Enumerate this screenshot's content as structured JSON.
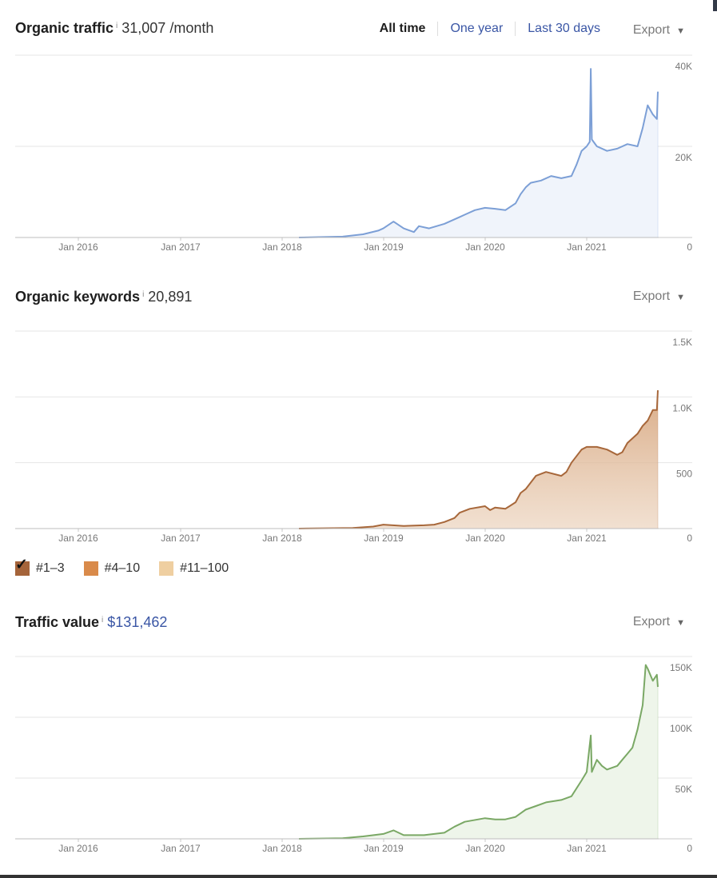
{
  "traffic": {
    "title": "Organic traffic",
    "info": "i",
    "value": "31,007 /month",
    "ranges": [
      "All time",
      "One year",
      "Last 30 days"
    ],
    "export": "Export"
  },
  "keywords": {
    "title": "Organic keywords",
    "info": "i",
    "value": "20,891",
    "export": "Export",
    "legend": [
      "#1–3",
      "#4–10",
      "#11–100"
    ]
  },
  "value_section": {
    "title": "Traffic value",
    "info": "i",
    "value": "$131,462",
    "export": "Export"
  },
  "colors": {
    "traffic_line": "#7c9fd6",
    "traffic_fill": "#f0f4fb",
    "keywords_line": "#a7673a",
    "keywords_fill": "#e6c7ab",
    "keywords_fill_top": "#d9ab86",
    "value_line": "#7aa865",
    "value_fill": "#eef5ea",
    "legend_1": "#a5643a",
    "legend_2": "#d98a4a",
    "legend_3": "#efcfa1"
  },
  "chart_data": [
    {
      "type": "area",
      "title": "Organic traffic",
      "x_ticks": [
        "Jan 2016",
        "Jan 2017",
        "Jan 2018",
        "Jan 2019",
        "Jan 2020",
        "Jan 2021"
      ],
      "y_ticks": [
        "0",
        "20K",
        "40K"
      ],
      "ylim": [
        0,
        40000
      ],
      "xlim": [
        2015.4,
        2021.7
      ],
      "grid": true,
      "series": [
        {
          "x": [
            2018.17,
            2018.6,
            2018.8,
            2018.95,
            2019.0,
            2019.1,
            2019.2,
            2019.3,
            2019.35,
            2019.45,
            2019.6,
            2019.75,
            2019.8,
            2019.9,
            2020.0,
            2020.1,
            2020.2,
            2020.3,
            2020.35,
            2020.4,
            2020.45,
            2020.55,
            2020.65,
            2020.75,
            2020.85,
            2020.9,
            2020.95,
            2021.0,
            2021.03,
            2021.04,
            2021.05,
            2021.1,
            2021.2,
            2021.3,
            2021.4,
            2021.5,
            2021.55,
            2021.6,
            2021.65,
            2021.69,
            2021.7
          ],
          "y": [
            0,
            200,
            700,
            1500,
            2000,
            3500,
            2000,
            1200,
            2500,
            2000,
            3000,
            4500,
            5000,
            6000,
            6500,
            6300,
            6000,
            7500,
            9500,
            11000,
            12000,
            12500,
            13500,
            13000,
            13500,
            16000,
            19000,
            20000,
            21000,
            37000,
            21500,
            20000,
            19000,
            19500,
            20500,
            20000,
            24000,
            29000,
            27000,
            26000,
            32000
          ]
        }
      ]
    },
    {
      "type": "area",
      "title": "Organic keywords",
      "x_ticks": [
        "Jan 2016",
        "Jan 2017",
        "Jan 2018",
        "Jan 2019",
        "Jan 2020",
        "Jan 2021"
      ],
      "y_ticks": [
        "0",
        "500",
        "1.0K",
        "1.5K"
      ],
      "ylim": [
        0,
        1500
      ],
      "xlim": [
        2015.4,
        2021.7
      ],
      "grid": true,
      "legend": [
        "#1–3",
        "#4–10",
        "#11–100"
      ],
      "legend_placement": "bottom-left",
      "series": [
        {
          "name": "#1–3",
          "x": [
            2018.17,
            2018.7,
            2018.9,
            2019.0,
            2019.2,
            2019.4,
            2019.5,
            2019.6,
            2019.7,
            2019.75,
            2019.85,
            2020.0,
            2020.05,
            2020.1,
            2020.2,
            2020.3,
            2020.35,
            2020.4,
            2020.5,
            2020.6,
            2020.75,
            2020.8,
            2020.85,
            2020.95,
            2021.0,
            2021.1,
            2021.2,
            2021.3,
            2021.35,
            2021.4,
            2021.5,
            2021.55,
            2021.6,
            2021.65,
            2021.69,
            2021.7
          ],
          "y": [
            0,
            5,
            15,
            30,
            20,
            25,
            30,
            50,
            80,
            120,
            150,
            170,
            140,
            160,
            150,
            200,
            270,
            300,
            400,
            430,
            400,
            430,
            500,
            600,
            620,
            620,
            600,
            560,
            580,
            650,
            720,
            780,
            820,
            900,
            900,
            1050
          ]
        }
      ]
    },
    {
      "type": "area",
      "title": "Traffic value",
      "x_ticks": [
        "Jan 2016",
        "Jan 2017",
        "Jan 2018",
        "Jan 2019",
        "Jan 2020",
        "Jan 2021"
      ],
      "y_ticks": [
        "0",
        "50K",
        "100K",
        "150K"
      ],
      "ylim": [
        0,
        150000
      ],
      "xlim": [
        2015.4,
        2021.7
      ],
      "grid": true,
      "series": [
        {
          "x": [
            2018.17,
            2018.6,
            2018.8,
            2019.0,
            2019.1,
            2019.2,
            2019.4,
            2019.6,
            2019.7,
            2019.8,
            2020.0,
            2020.1,
            2020.2,
            2020.3,
            2020.4,
            2020.5,
            2020.6,
            2020.75,
            2020.85,
            2020.95,
            2021.0,
            2021.04,
            2021.05,
            2021.1,
            2021.15,
            2021.2,
            2021.3,
            2021.35,
            2021.4,
            2021.45,
            2021.5,
            2021.55,
            2021.58,
            2021.6,
            2021.65,
            2021.69,
            2021.7
          ],
          "y": [
            0,
            500,
            2000,
            4000,
            7000,
            3000,
            3000,
            5000,
            10000,
            14000,
            17000,
            16000,
            16000,
            18000,
            24000,
            27000,
            30000,
            32000,
            35000,
            48000,
            55000,
            85000,
            55000,
            65000,
            60000,
            57000,
            60000,
            65000,
            70000,
            75000,
            90000,
            110000,
            143000,
            140000,
            130000,
            135000,
            125000
          ]
        }
      ]
    }
  ]
}
